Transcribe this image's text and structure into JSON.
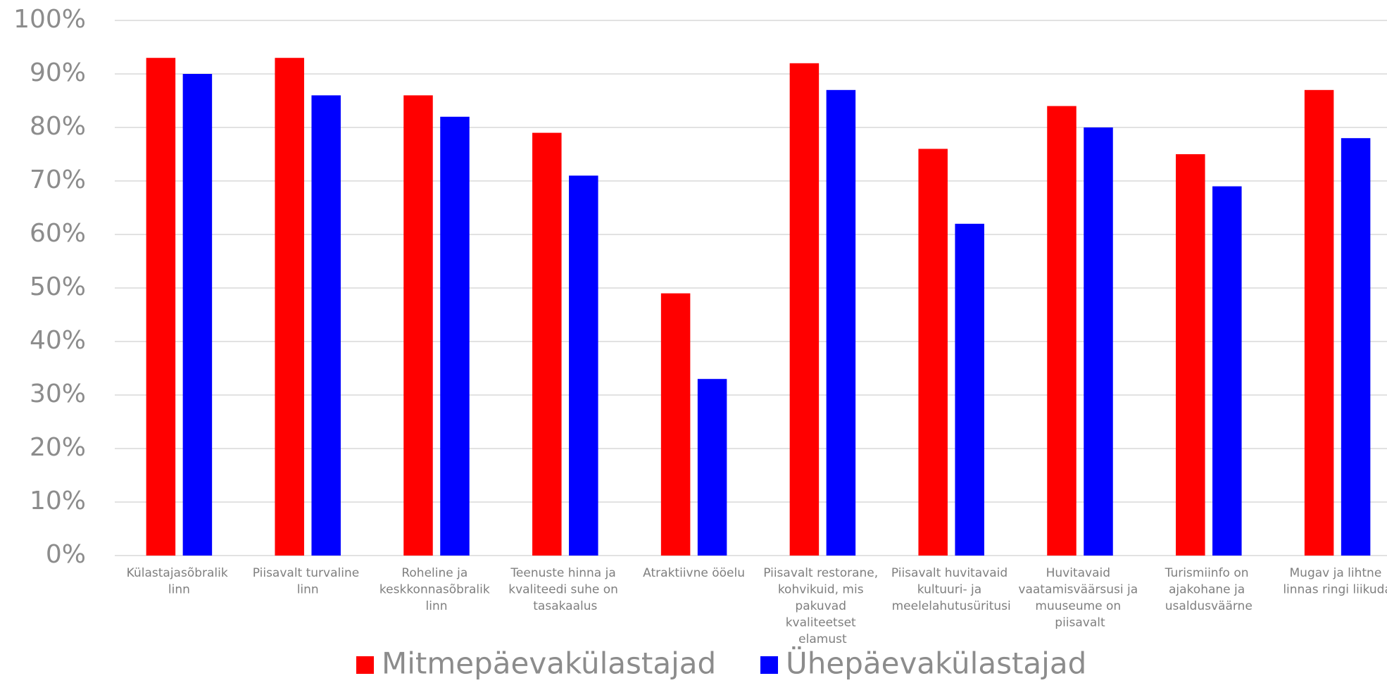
{
  "chart_data": {
    "type": "bar",
    "categories": [
      "Külastajasõbralik linn",
      "Piisavalt turvaline linn",
      "Roheline ja keskkonnasõbralik linn",
      "Teenuste hinna ja kvaliteedi suhe on tasakaalus",
      "Atraktiivne ööelu",
      "Piisavalt restorane, kohvikuid, mis pakuvad kvaliteetset elamust",
      "Piisavalt huvitavaid kultuuri- ja meelelahutusüritusi",
      "Huvitavaid vaatamisväärsusi ja muuseume on piisavalt",
      "Turismiinfo on ajakohane ja usaldusväärne",
      "Mugav ja lihtne linnas ringi liikuda"
    ],
    "series": [
      {
        "name": "Mitmepäevakülastajad",
        "color": "#ff0000",
        "values": [
          93,
          93,
          86,
          79,
          49,
          92,
          76,
          84,
          75,
          87
        ]
      },
      {
        "name": "Ühepäevakülastajad",
        "color": "#0000ff",
        "values": [
          90,
          86,
          82,
          71,
          33,
          87,
          62,
          80,
          69,
          78
        ]
      }
    ],
    "ylim": [
      0,
      100
    ],
    "yticks": [
      {
        "value": 0,
        "label": "0%"
      },
      {
        "value": 10,
        "label": "10%"
      },
      {
        "value": 20,
        "label": "20%"
      },
      {
        "value": 30,
        "label": "30%"
      },
      {
        "value": 40,
        "label": "40%"
      },
      {
        "value": 50,
        "label": "50%"
      },
      {
        "value": 60,
        "label": "60%"
      },
      {
        "value": 70,
        "label": "70%"
      },
      {
        "value": 80,
        "label": "80%"
      },
      {
        "value": 90,
        "label": "90%"
      },
      {
        "value": 100,
        "label": "100%"
      }
    ],
    "grid": true,
    "legend": "bottom"
  }
}
